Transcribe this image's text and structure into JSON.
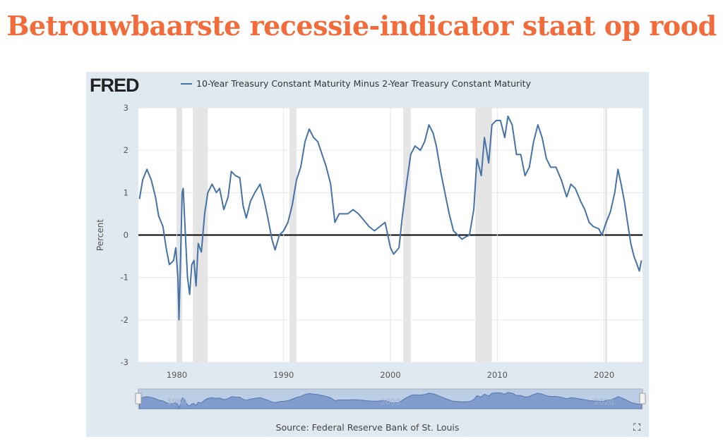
{
  "headline": "Betrouwbaarste recessie-indicator staat op rood",
  "logo": "FRED",
  "source": "Source: Federal Reserve Bank of St. Louis",
  "fullscreen_icon": "expand-icon",
  "colors": {
    "headline": "#f26b3a",
    "series": "#4572a7",
    "recession": "#e5e5e5",
    "panel": "#e1e9f0"
  },
  "chart_data": {
    "type": "line",
    "title": "",
    "ylabel": "Percent",
    "xlabel": "",
    "ylim": [
      -3,
      3
    ],
    "xlim": [
      1976.4,
      2023.6
    ],
    "yticks": [
      3,
      2,
      1,
      0,
      -1,
      -2,
      -3
    ],
    "xticks": [
      1980,
      1990,
      2000,
      2010,
      2020
    ],
    "grid": true,
    "legend": "top-left",
    "recessions": [
      [
        1980.0,
        1980.5
      ],
      [
        1981.5,
        1982.9
      ],
      [
        1990.55,
        1991.2
      ],
      [
        2001.2,
        2001.9
      ],
      [
        2007.95,
        2009.5
      ],
      [
        2020.1,
        2020.3
      ]
    ],
    "series": [
      {
        "name": "10-Year Treasury Constant Maturity Minus 2-Year Treasury Constant Maturity",
        "x": [
          1976.5,
          1976.8,
          1977.2,
          1977.6,
          1978.0,
          1978.3,
          1978.7,
          1979.0,
          1979.3,
          1979.7,
          1979.9,
          1980.1,
          1980.2,
          1980.35,
          1980.5,
          1980.6,
          1980.8,
          1981.0,
          1981.2,
          1981.4,
          1981.6,
          1981.8,
          1982.0,
          1982.3,
          1982.6,
          1982.9,
          1983.3,
          1983.7,
          1984.0,
          1984.4,
          1984.8,
          1985.1,
          1985.5,
          1985.9,
          1986.2,
          1986.5,
          1986.9,
          1987.3,
          1987.8,
          1988.2,
          1988.6,
          1988.9,
          1989.2,
          1989.6,
          1990.0,
          1990.4,
          1990.8,
          1991.2,
          1991.6,
          1992.0,
          1992.4,
          1992.8,
          1993.2,
          1993.6,
          1994.0,
          1994.4,
          1994.8,
          1995.2,
          1995.6,
          1996.0,
          1996.5,
          1997.0,
          1997.5,
          1998.0,
          1998.5,
          1999.0,
          1999.5,
          2000.0,
          2000.3,
          2000.8,
          2001.1,
          2001.5,
          2001.9,
          2002.3,
          2002.8,
          2003.2,
          2003.6,
          2004.0,
          2004.3,
          2004.7,
          2005.1,
          2005.5,
          2005.9,
          2006.3,
          2006.7,
          2007.0,
          2007.4,
          2007.8,
          2008.1,
          2008.5,
          2008.8,
          2009.2,
          2009.5,
          2009.9,
          2010.3,
          2010.7,
          2011.0,
          2011.4,
          2011.8,
          2012.2,
          2012.6,
          2013.0,
          2013.4,
          2013.8,
          2014.2,
          2014.6,
          2015.0,
          2015.5,
          2016.0,
          2016.5,
          2016.9,
          2017.3,
          2017.8,
          2018.2,
          2018.6,
          2019.0,
          2019.5,
          2019.8,
          2020.2,
          2020.6,
          2021.0,
          2021.3,
          2021.6,
          2021.9,
          2022.2,
          2022.5,
          2022.8,
          2023.1,
          2023.3,
          2023.5
        ],
        "y": [
          0.85,
          1.3,
          1.55,
          1.3,
          0.9,
          0.45,
          0.2,
          -0.3,
          -0.7,
          -0.6,
          -0.3,
          -1.0,
          -2.0,
          -0.5,
          1.0,
          1.1,
          0.0,
          -1.0,
          -1.4,
          -0.7,
          -0.6,
          -1.2,
          -0.2,
          -0.4,
          0.5,
          1.0,
          1.2,
          1.0,
          1.1,
          0.6,
          0.9,
          1.5,
          1.4,
          1.35,
          0.7,
          0.4,
          0.8,
          1.0,
          1.2,
          0.8,
          0.3,
          -0.1,
          -0.35,
          0.0,
          0.1,
          0.3,
          0.7,
          1.3,
          1.6,
          2.2,
          2.5,
          2.3,
          2.2,
          1.9,
          1.6,
          1.2,
          0.3,
          0.5,
          0.5,
          0.5,
          0.6,
          0.5,
          0.35,
          0.2,
          0.1,
          0.2,
          0.3,
          -0.3,
          -0.45,
          -0.3,
          0.4,
          1.2,
          1.9,
          2.1,
          2.0,
          2.2,
          2.6,
          2.4,
          2.1,
          1.5,
          1.0,
          0.5,
          0.1,
          0.0,
          -0.1,
          -0.05,
          0.0,
          0.6,
          1.8,
          1.4,
          2.3,
          1.7,
          2.6,
          2.7,
          2.7,
          2.3,
          2.8,
          2.6,
          1.9,
          1.9,
          1.4,
          1.6,
          2.2,
          2.6,
          2.3,
          1.8,
          1.6,
          1.6,
          1.3,
          0.9,
          1.2,
          1.1,
          0.8,
          0.6,
          0.3,
          0.2,
          0.15,
          0.0,
          0.3,
          0.55,
          1.0,
          1.55,
          1.2,
          0.8,
          0.3,
          -0.2,
          -0.5,
          -0.7,
          -0.85,
          -0.6
        ]
      }
    ]
  }
}
